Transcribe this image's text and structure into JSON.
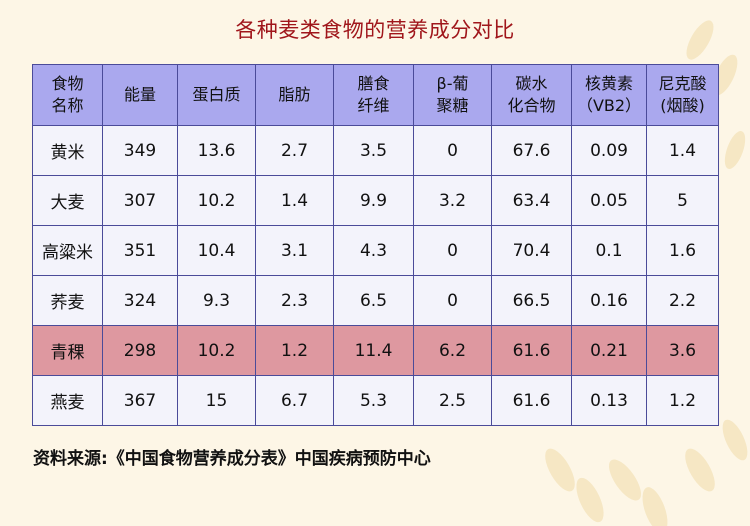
{
  "chart_data": {
    "type": "table",
    "title": "各种麦类食物的营养成分对比",
    "columns": [
      "食物\n名称",
      "能量",
      "蛋白质",
      "脂肪",
      "膳食\n纤维",
      "β-葡\n聚糖",
      "碳水\n化合物",
      "核黄素\n（VB2）",
      "尼克酸\n(烟酸)"
    ],
    "rows": [
      [
        "黄米",
        "349",
        "13.6",
        "2.7",
        "3.5",
        "0",
        "67.6",
        "0.09",
        "1.4"
      ],
      [
        "大麦",
        "307",
        "10.2",
        "1.4",
        "9.9",
        "3.2",
        "63.4",
        "0.05",
        "5"
      ],
      [
        "高粱米",
        "351",
        "10.4",
        "3.1",
        "4.3",
        "0",
        "70.4",
        "0.1",
        "1.6"
      ],
      [
        "荞麦",
        "324",
        "9.3",
        "2.3",
        "6.5",
        "0",
        "66.5",
        "0.16",
        "2.2"
      ],
      [
        "青稞",
        "298",
        "10.2",
        "1.2",
        "11.4",
        "6.2",
        "61.6",
        "0.21",
        "3.6"
      ],
      [
        "燕麦",
        "367",
        "15",
        "6.7",
        "5.3",
        "2.5",
        "61.6",
        "0.13",
        "1.2"
      ]
    ],
    "highlight_row": 4,
    "source": "资料来源:《中国食物营养成分表》中国疾病预防中心"
  },
  "colors": {
    "title": "#a0161b",
    "header_bg": "#aaa8ee",
    "row_bg": "#f3f3fb",
    "highlight_bg": "#de98a0",
    "border": "#4b4b99",
    "page_bg": "#fdf6e6"
  }
}
